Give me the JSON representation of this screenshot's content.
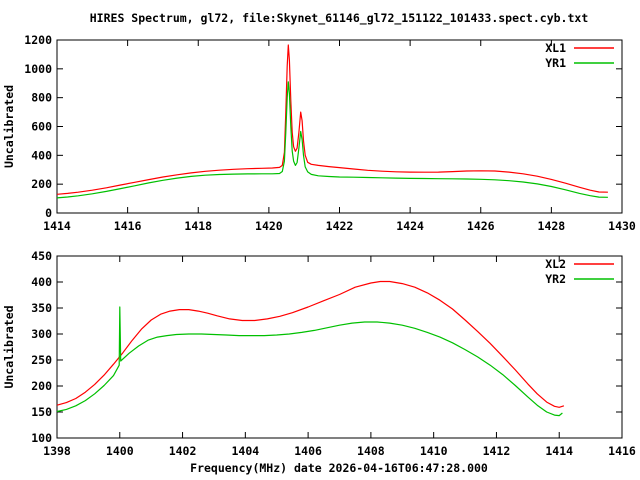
{
  "title": "HIRES Spectrum, gl72, file:Skynet_61146_gl72_151122_101433.spect.cyb.txt",
  "background_color": "#ffffff",
  "axis_color": "#000000",
  "chart_data": [
    {
      "type": "line",
      "ylabel": "Uncalibrated",
      "xlabel": "",
      "xlim": [
        1414,
        1430
      ],
      "ylim": [
        0,
        1200
      ],
      "grid": false,
      "legend_position": "top-right",
      "xtick_labels": [
        "1414",
        "1416",
        "1418",
        "1420",
        "1422",
        "1424",
        "1426",
        "1428",
        "1430"
      ],
      "ytick_labels": [
        "0",
        "200",
        "400",
        "600",
        "800",
        "1000",
        "1200"
      ],
      "series": [
        {
          "name": "XL1",
          "color": "#ff0000",
          "points": [
            [
              1414.0,
              130
            ],
            [
              1414.3,
              136
            ],
            [
              1414.6,
              144
            ],
            [
              1415.0,
              158
            ],
            [
              1415.4,
              175
            ],
            [
              1415.8,
              194
            ],
            [
              1416.2,
              213
            ],
            [
              1416.6,
              232
            ],
            [
              1417.0,
              250
            ],
            [
              1417.4,
              265
            ],
            [
              1417.8,
              278
            ],
            [
              1418.2,
              289
            ],
            [
              1418.6,
              297
            ],
            [
              1419.0,
              303
            ],
            [
              1419.4,
              307
            ],
            [
              1419.8,
              310
            ],
            [
              1420.1,
              312
            ],
            [
              1420.3,
              316
            ],
            [
              1420.38,
              330
            ],
            [
              1420.44,
              420
            ],
            [
              1420.48,
              700
            ],
            [
              1420.52,
              1020
            ],
            [
              1420.55,
              1165
            ],
            [
              1420.58,
              1060
            ],
            [
              1420.62,
              780
            ],
            [
              1420.66,
              560
            ],
            [
              1420.7,
              460
            ],
            [
              1420.75,
              428
            ],
            [
              1420.8,
              450
            ],
            [
              1420.85,
              560
            ],
            [
              1420.9,
              700
            ],
            [
              1420.94,
              640
            ],
            [
              1420.98,
              500
            ],
            [
              1421.03,
              400
            ],
            [
              1421.1,
              352
            ],
            [
              1421.2,
              338
            ],
            [
              1421.4,
              330
            ],
            [
              1421.7,
              322
            ],
            [
              1422.0,
              315
            ],
            [
              1422.4,
              305
            ],
            [
              1422.8,
              296
            ],
            [
              1423.2,
              290
            ],
            [
              1423.6,
              286
            ],
            [
              1424.0,
              284
            ],
            [
              1424.4,
              283
            ],
            [
              1424.8,
              284
            ],
            [
              1425.2,
              287
            ],
            [
              1425.6,
              291
            ],
            [
              1426.0,
              293
            ],
            [
              1426.4,
              291
            ],
            [
              1426.8,
              284
            ],
            [
              1427.2,
              272
            ],
            [
              1427.6,
              255
            ],
            [
              1428.0,
              233
            ],
            [
              1428.4,
              207
            ],
            [
              1428.8,
              178
            ],
            [
              1429.1,
              158
            ],
            [
              1429.35,
              146
            ],
            [
              1429.6,
              144
            ]
          ]
        },
        {
          "name": "YR1",
          "color": "#00c000",
          "points": [
            [
              1414.0,
              105
            ],
            [
              1414.3,
              111
            ],
            [
              1414.6,
              119
            ],
            [
              1415.0,
              133
            ],
            [
              1415.4,
              150
            ],
            [
              1415.8,
              169
            ],
            [
              1416.2,
              189
            ],
            [
              1416.6,
              209
            ],
            [
              1417.0,
              227
            ],
            [
              1417.4,
              242
            ],
            [
              1417.8,
              254
            ],
            [
              1418.2,
              262
            ],
            [
              1418.6,
              267
            ],
            [
              1419.0,
              270
            ],
            [
              1419.4,
              271
            ],
            [
              1419.8,
              272
            ],
            [
              1420.1,
              272
            ],
            [
              1420.3,
              274
            ],
            [
              1420.38,
              288
            ],
            [
              1420.44,
              360
            ],
            [
              1420.48,
              560
            ],
            [
              1420.52,
              800
            ],
            [
              1420.55,
              910
            ],
            [
              1420.58,
              830
            ],
            [
              1420.62,
              600
            ],
            [
              1420.66,
              430
            ],
            [
              1420.7,
              360
            ],
            [
              1420.75,
              330
            ],
            [
              1420.8,
              350
            ],
            [
              1420.85,
              450
            ],
            [
              1420.9,
              565
            ],
            [
              1420.94,
              510
            ],
            [
              1420.98,
              400
            ],
            [
              1421.03,
              320
            ],
            [
              1421.1,
              285
            ],
            [
              1421.2,
              268
            ],
            [
              1421.4,
              258
            ],
            [
              1421.7,
              253
            ],
            [
              1422.0,
              250
            ],
            [
              1422.4,
              248
            ],
            [
              1422.8,
              246
            ],
            [
              1423.2,
              244
            ],
            [
              1423.6,
              242
            ],
            [
              1424.0,
              240
            ],
            [
              1424.4,
              239
            ],
            [
              1424.8,
              238
            ],
            [
              1425.2,
              237
            ],
            [
              1425.6,
              236
            ],
            [
              1426.0,
              234
            ],
            [
              1426.4,
              230
            ],
            [
              1426.8,
              224
            ],
            [
              1427.2,
              215
            ],
            [
              1427.6,
              202
            ],
            [
              1428.0,
              184
            ],
            [
              1428.4,
              161
            ],
            [
              1428.8,
              136
            ],
            [
              1429.1,
              120
            ],
            [
              1429.35,
              110
            ],
            [
              1429.6,
              109
            ]
          ]
        }
      ]
    },
    {
      "type": "line",
      "ylabel": "Uncalibrated",
      "xlabel": "Frequency(MHz) date 2026-04-16T06:47:28.000",
      "xlim": [
        1398,
        1416
      ],
      "ylim": [
        100,
        450
      ],
      "grid": false,
      "legend_position": "top-right",
      "xtick_labels": [
        "1398",
        "1400",
        "1402",
        "1404",
        "1406",
        "1408",
        "1410",
        "1412",
        "1414",
        "1416"
      ],
      "ytick_labels": [
        "100",
        "150",
        "200",
        "250",
        "300",
        "350",
        "400",
        "450"
      ],
      "series": [
        {
          "name": "XL2",
          "color": "#ff0000",
          "points": [
            [
              1398.0,
              163
            ],
            [
              1398.3,
              168
            ],
            [
              1398.6,
              176
            ],
            [
              1398.9,
              188
            ],
            [
              1399.2,
              203
            ],
            [
              1399.5,
              221
            ],
            [
              1399.8,
              242
            ],
            [
              1400.1,
              264
            ],
            [
              1400.4,
              288
            ],
            [
              1400.7,
              310
            ],
            [
              1401.0,
              327
            ],
            [
              1401.3,
              338
            ],
            [
              1401.6,
              344
            ],
            [
              1401.9,
              347
            ],
            [
              1402.2,
              347
            ],
            [
              1402.5,
              344
            ],
            [
              1402.8,
              340
            ],
            [
              1403.1,
              335
            ],
            [
              1403.5,
              329
            ],
            [
              1403.9,
              326
            ],
            [
              1404.3,
              326
            ],
            [
              1404.7,
              329
            ],
            [
              1405.1,
              334
            ],
            [
              1405.5,
              341
            ],
            [
              1406.0,
              352
            ],
            [
              1406.5,
              364
            ],
            [
              1407.0,
              376
            ],
            [
              1407.5,
              390
            ],
            [
              1408.0,
              398
            ],
            [
              1408.3,
              401
            ],
            [
              1408.6,
              401
            ],
            [
              1409.0,
              397
            ],
            [
              1409.4,
              390
            ],
            [
              1409.8,
              379
            ],
            [
              1410.2,
              365
            ],
            [
              1410.6,
              348
            ],
            [
              1411.0,
              327
            ],
            [
              1411.4,
              305
            ],
            [
              1411.8,
              282
            ],
            [
              1412.2,
              257
            ],
            [
              1412.6,
              231
            ],
            [
              1413.0,
              204
            ],
            [
              1413.3,
              185
            ],
            [
              1413.6,
              169
            ],
            [
              1413.85,
              161
            ],
            [
              1414.0,
              159
            ],
            [
              1414.15,
              162
            ]
          ]
        },
        {
          "name": "YR2",
          "color": "#00c000",
          "points": [
            [
              1398.0,
              151
            ],
            [
              1398.3,
              155
            ],
            [
              1398.6,
              162
            ],
            [
              1398.9,
              172
            ],
            [
              1399.2,
              185
            ],
            [
              1399.5,
              201
            ],
            [
              1399.8,
              220
            ],
            [
              1399.98,
              240
            ],
            [
              1400.0,
              352
            ],
            [
              1400.03,
              248
            ],
            [
              1400.3,
              263
            ],
            [
              1400.6,
              277
            ],
            [
              1400.9,
              288
            ],
            [
              1401.2,
              294
            ],
            [
              1401.5,
              297
            ],
            [
              1401.8,
              299
            ],
            [
              1402.2,
              300
            ],
            [
              1402.6,
              300
            ],
            [
              1403.0,
              299
            ],
            [
              1403.4,
              298
            ],
            [
              1403.8,
              297
            ],
            [
              1404.2,
              297
            ],
            [
              1404.6,
              297
            ],
            [
              1405.0,
              298
            ],
            [
              1405.4,
              300
            ],
            [
              1405.8,
              303
            ],
            [
              1406.2,
              307
            ],
            [
              1406.6,
              312
            ],
            [
              1407.0,
              317
            ],
            [
              1407.4,
              321
            ],
            [
              1407.8,
              323
            ],
            [
              1408.2,
              323
            ],
            [
              1408.6,
              321
            ],
            [
              1409.0,
              317
            ],
            [
              1409.4,
              311
            ],
            [
              1409.8,
              303
            ],
            [
              1410.2,
              294
            ],
            [
              1410.6,
              283
            ],
            [
              1411.0,
              270
            ],
            [
              1411.4,
              256
            ],
            [
              1411.8,
              240
            ],
            [
              1412.2,
              222
            ],
            [
              1412.6,
              201
            ],
            [
              1413.0,
              179
            ],
            [
              1413.3,
              163
            ],
            [
              1413.6,
              150
            ],
            [
              1413.85,
              144
            ],
            [
              1414.0,
              143
            ],
            [
              1414.1,
              148
            ]
          ]
        }
      ]
    }
  ]
}
